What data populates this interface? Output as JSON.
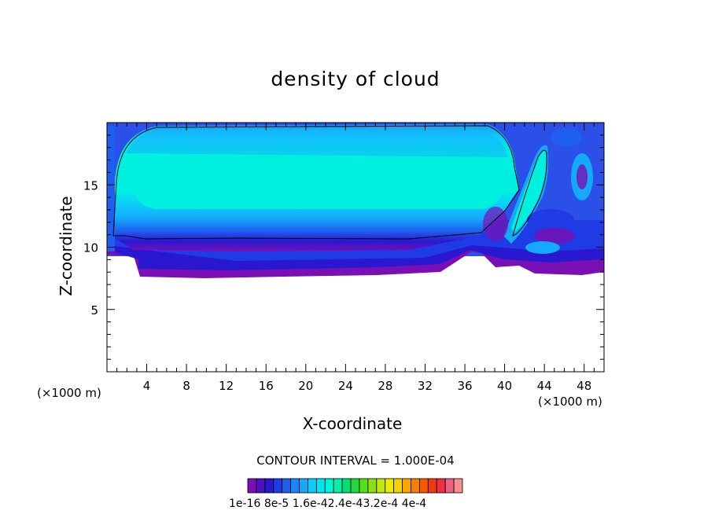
{
  "chart_data": {
    "type": "heatmap",
    "title": "density of cloud",
    "xlabel": "X-coordinate",
    "ylabel": "Z-coordinate",
    "x_unit_label": "(×1000 m)",
    "xlim": [
      0,
      50
    ],
    "ylim": [
      0,
      20
    ],
    "x_ticks": [
      4,
      8,
      12,
      16,
      20,
      24,
      28,
      32,
      36,
      40,
      44,
      48
    ],
    "y_ticks": [
      5,
      10,
      15
    ],
    "contour_interval_label": "CONTOUR INTERVAL = 1.000E-04",
    "colorbar_labels": "1e-16 8e-5 1.6e-42.4e-43.2e-4 4e-4",
    "colorbar_colors": [
      "#7a0fb3",
      "#4b10bf",
      "#2a18d0",
      "#1f3be6",
      "#1f5ff0",
      "#1a86f7",
      "#14a9fb",
      "#0ecbfb",
      "#00e5f0",
      "#00f5d8",
      "#00f0a8",
      "#00e070",
      "#22d83a",
      "#55e01a",
      "#8ae012",
      "#bde80a",
      "#e8ec00",
      "#f5d200",
      "#f7a800",
      "#f78000",
      "#f55a00",
      "#f23a10",
      "#ee3040",
      "#f06080",
      "#f59090"
    ],
    "cloud_field": {
      "description_levels": "density increases from base (purple) to core (cyan)",
      "main_cloud_x_range": [
        1,
        39
      ],
      "main_cloud_z_range": [
        7.5,
        19.8
      ],
      "core_z_range": [
        11,
        17.5
      ],
      "outflow_plume_x_range": [
        40,
        45
      ],
      "outflow_plume_z_range": [
        12,
        18
      ]
    }
  }
}
